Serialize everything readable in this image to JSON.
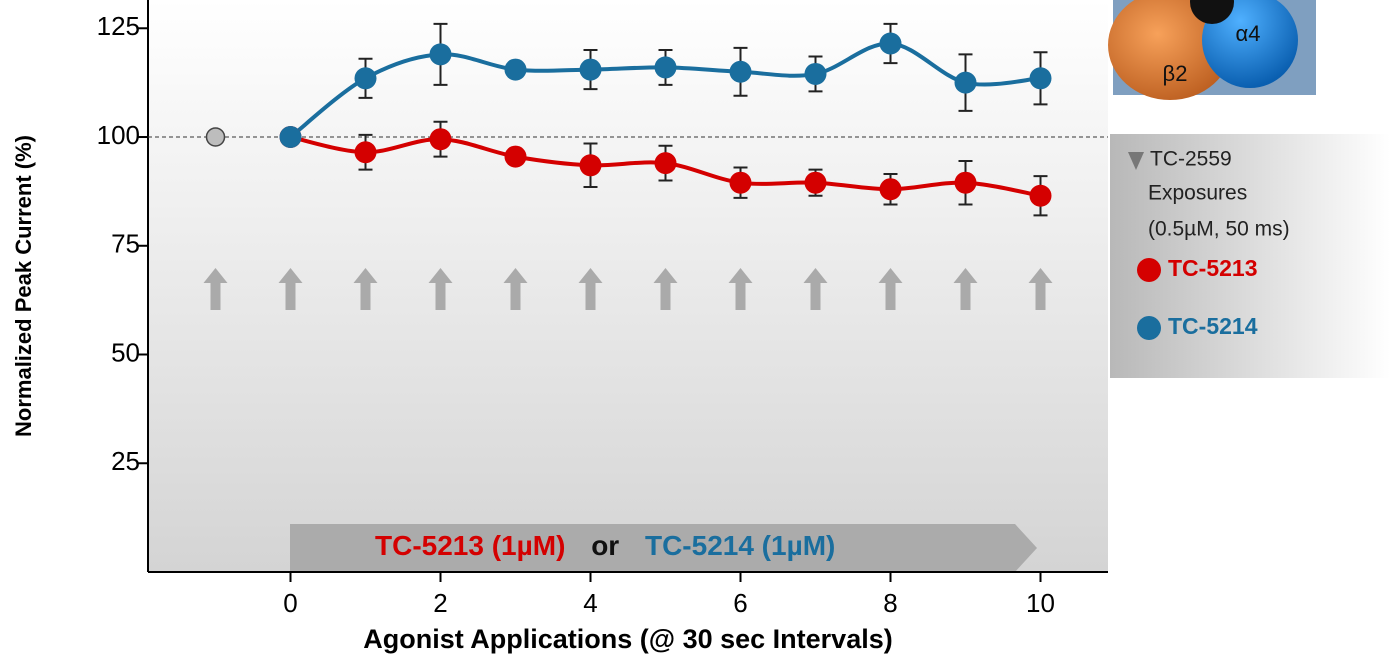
{
  "chart_data": {
    "type": "line",
    "x_label": "Agonist Applications (@ 30 sec Intervals)",
    "y_label": "Normalized Peak Current (%)",
    "xlim": [
      -1.9,
      10.9
    ],
    "xticks": [
      0,
      2,
      4,
      6,
      8,
      10
    ],
    "ylim": [
      0,
      131.5
    ],
    "yticks": [
      25,
      50,
      75,
      100,
      125
    ],
    "reference_line": 100,
    "control_point": {
      "x": -1,
      "value": 100,
      "color": "#bdbdbd"
    },
    "series": [
      {
        "name": "TC-5213",
        "color": "#d40000",
        "x": [
          0,
          1,
          2,
          3,
          4,
          5,
          6,
          7,
          8,
          9,
          10
        ],
        "values": [
          100,
          96.5,
          99.5,
          95.5,
          93.5,
          94,
          89.5,
          89.5,
          88,
          89.5,
          86.5
        ],
        "errors": [
          0,
          4,
          4,
          1,
          5,
          4,
          3.5,
          3,
          3.5,
          5,
          4.5
        ]
      },
      {
        "name": "TC-5214",
        "color": "#1a6e9e",
        "x": [
          0,
          1,
          2,
          3,
          4,
          5,
          6,
          7,
          8,
          9,
          10
        ],
        "values": [
          100,
          113.5,
          119,
          115.5,
          115.5,
          116,
          115,
          114.5,
          121.5,
          112.5,
          113.5
        ],
        "errors": [
          0,
          4.5,
          7,
          1,
          4.5,
          4,
          5.5,
          4,
          4.5,
          6.5,
          6
        ]
      }
    ],
    "exposure_legend": [
      "TC-2559",
      "Exposures",
      "(0.5µM, 50 ms)"
    ],
    "banner": {
      "part1": "TC-5213 (1µM)",
      "part2": "or",
      "part3": "TC-5214 (1µM)"
    },
    "inset_labels": [
      "β2",
      "α4"
    ]
  }
}
